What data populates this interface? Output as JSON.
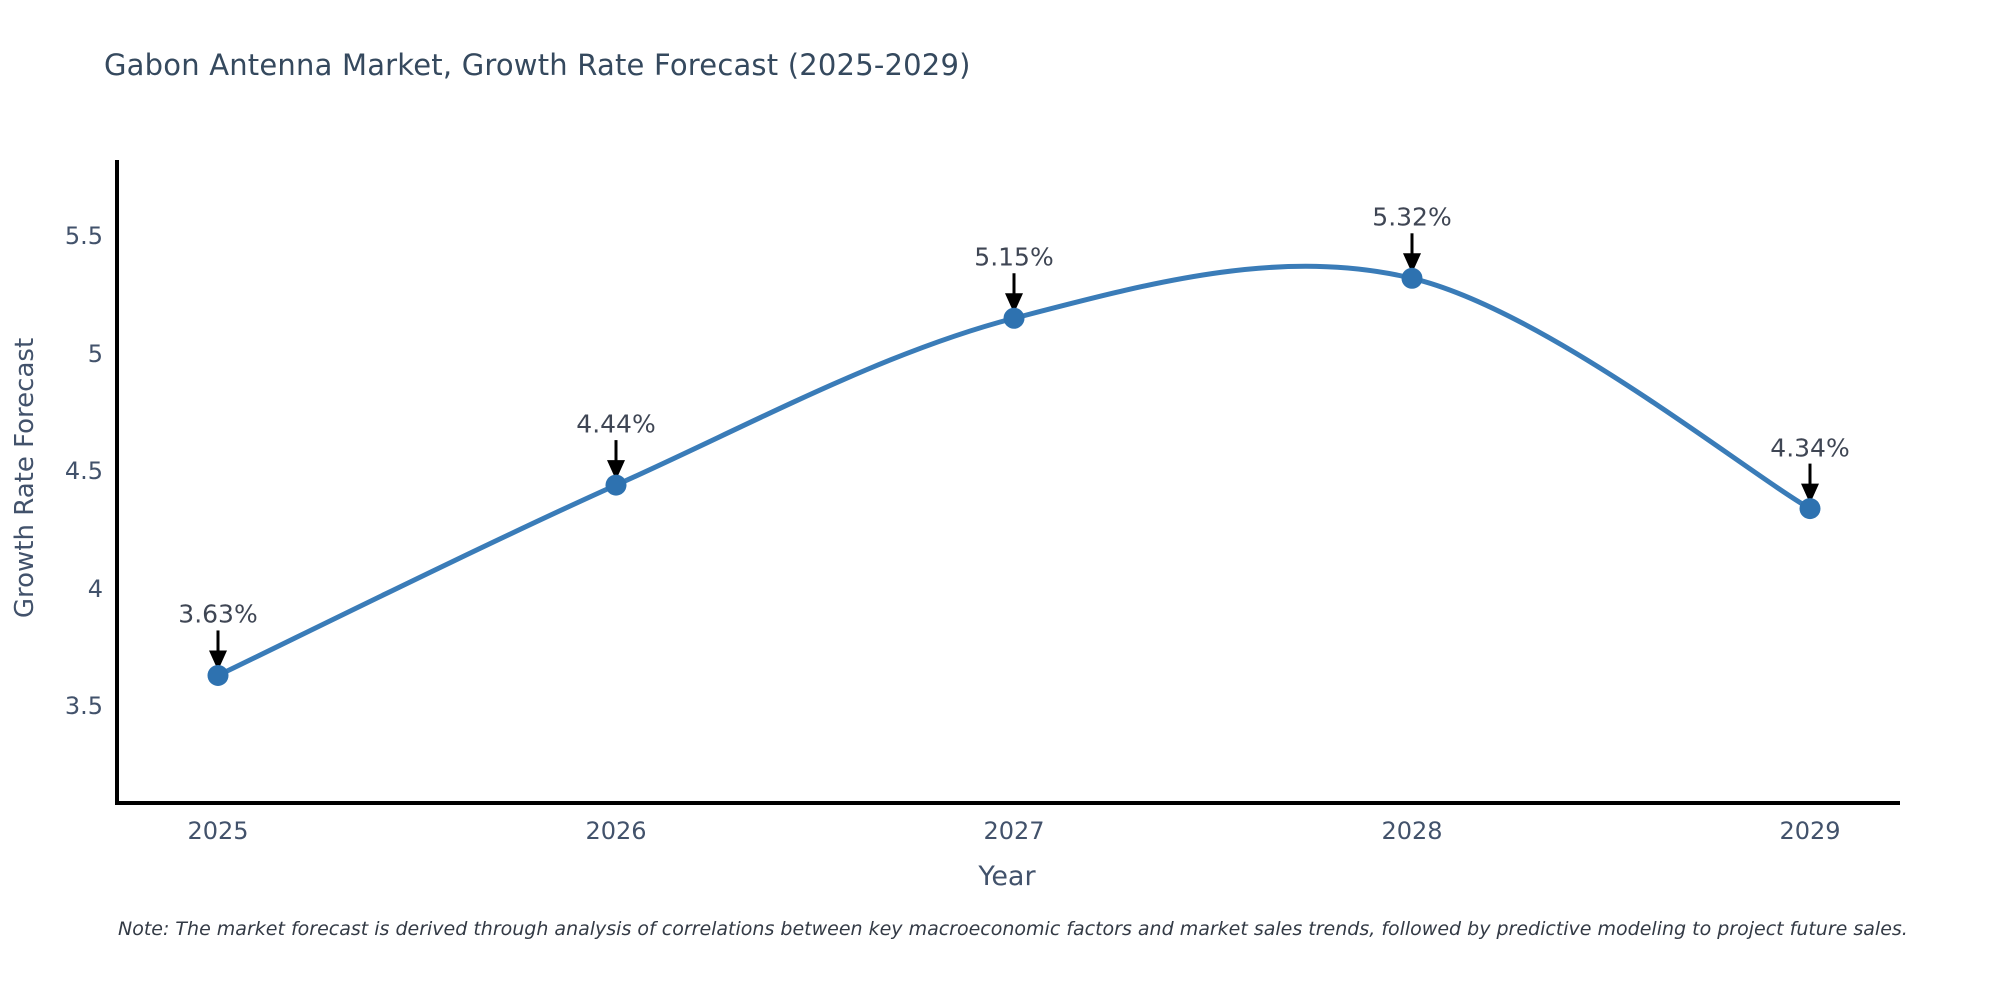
{
  "chart_data": {
    "type": "line",
    "title": "Gabon Antenna Market, Growth Rate Forecast (2025-2029)",
    "xlabel": "Year",
    "ylabel": "Growth Rate Forecast",
    "x": [
      2025,
      2026,
      2027,
      2028,
      2029
    ],
    "values": [
      3.63,
      4.44,
      5.15,
      5.32,
      4.34
    ],
    "point_labels": [
      "3.63%",
      "4.44%",
      "5.15%",
      "5.32%",
      "4.34%"
    ],
    "xticklabels": [
      "2025",
      "2026",
      "2027",
      "2028",
      "2029"
    ],
    "yticks": [
      3.5,
      4,
      4.5,
      5,
      5.5
    ],
    "yticklabels": [
      "3.5",
      "4",
      "4.5",
      "5",
      "5.5"
    ],
    "ylim": [
      3.09,
      5.85
    ],
    "line_shape": "spline",
    "grid": false,
    "legend": "none",
    "annotations_style": "value label with downward black arrow onto each marker",
    "colors": {
      "line": "#3a7cb8",
      "marker": "#2e72b0",
      "axis": "#000000",
      "arrow": "#000000",
      "tick_text": "#42526b",
      "title_text": "#35495e",
      "annotation_text": "#3f4654",
      "background": "#ffffff"
    }
  },
  "note": "Note: The market forecast is derived through analysis of correlations between key macroeconomic factors and market sales trends, followed by predictive modeling to project future sales."
}
